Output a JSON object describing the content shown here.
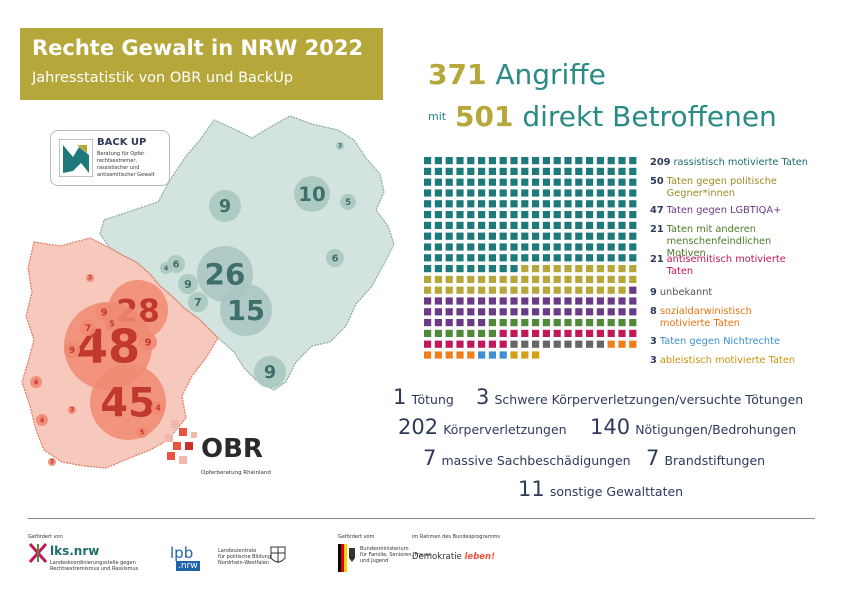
{
  "header": {
    "title": "Rechte Gewalt in NRW 2022",
    "subtitle": "Jahresstatistik von OBR und BackUp"
  },
  "headline": {
    "attacks_count": "371",
    "attacks_label": "Angriffe",
    "with_label": "mit",
    "victims_count": "501",
    "victims_label": "direkt Betroffenen"
  },
  "legend": [
    {
      "count": "209",
      "label": "rassistisch motivierte Taten",
      "color": "#1e7a7a",
      "text_color": "#1e6e6e"
    },
    {
      "count": "50",
      "label": "Taten gegen politische Gegner*innen",
      "color": "#b5a73a",
      "text_color": "#9a8c25"
    },
    {
      "count": "47",
      "label": "Taten gegen LGBTIQA+",
      "color": "#6b3a86",
      "text_color": "#6b3a86"
    },
    {
      "count": "21",
      "label": "Taten mit anderen menschenfeindlichen Motiven",
      "color": "#4e8a3a",
      "text_color": "#4e7a2a"
    },
    {
      "count": "21",
      "label": "antisemitisch motivierte Taten",
      "color": "#c2185b",
      "text_color": "#c2185b"
    },
    {
      "count": "9",
      "label": "unbekannt",
      "color": "#666666",
      "text_color": "#555555"
    },
    {
      "count": "8",
      "label": "sozialdarwinistisch motivierte Taten",
      "color": "#ef7d1a",
      "text_color": "#e8730f"
    },
    {
      "count": "3",
      "label": "Taten gegen Nichtrechte",
      "color": "#3d8fcf",
      "text_color": "#3d8fcf"
    },
    {
      "count": "3",
      "label": "ableistisch motivierte Taten",
      "color": "#d4a017",
      "text_color": "#c89510"
    }
  ],
  "offenses": [
    {
      "num": "1",
      "label": "Tötung"
    },
    {
      "num": "3",
      "label": "Schwere Körperverletzungen/versuchte Tötungen"
    },
    {
      "num": "202",
      "label": "Körperverletzungen"
    },
    {
      "num": "140",
      "label": "Nötigungen/Bedrohungen"
    },
    {
      "num": "7",
      "label": "massive Sachbeschädigungen"
    },
    {
      "num": "7",
      "label": "Brandstiftungen"
    },
    {
      "num": "11",
      "label": "sonstige Gewalttaten"
    }
  ],
  "map": {
    "east_bubbles": [
      "3",
      "10",
      "5",
      "9",
      "6",
      "4",
      "6",
      "26",
      "9",
      "7",
      "15",
      "9"
    ],
    "west_bubbles": [
      "28",
      "48",
      "45",
      "9",
      "7",
      "5",
      "9",
      "9",
      "4",
      "4",
      "4",
      "5",
      "3",
      "3",
      "3"
    ]
  },
  "backup_logo": {
    "name": "BACK UP",
    "line1": "Beratung für Opfer",
    "line2": "rechtsextremer,",
    "line3": "rassistischer und",
    "line4": "antisemitischer Gewalt"
  },
  "obr_logo": {
    "name": "OBR",
    "tagline": "Opferberatung Rheinland"
  },
  "footer": {
    "funded_by": "Gefördert von",
    "lks_name": "lks.nrw",
    "lks_sub1": "Landeskoordinierungsstelle gegen",
    "lks_sub2": "Rechtsextremismus und Rassismus",
    "lpb_name": "lpb",
    "lpb_sub": ".nrw",
    "lpb_desc1": "Landeszentrale",
    "lpb_desc2": "für politische Bildung",
    "lpb_desc3": "Nordrhein-Westfalen",
    "funded_by2": "Gefördert vom",
    "bmfsfj1": "Bundesministerium",
    "bmfsfj2": "für Familie, Senioren, Frauen",
    "bmfsfj3": "und Jugend",
    "program": "im Rahmen des Bundesprogramms",
    "demokratie": "Demokratie",
    "leben": "leben!"
  }
}
